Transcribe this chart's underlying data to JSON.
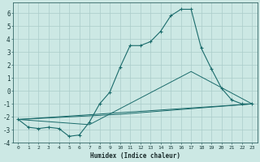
{
  "title": "",
  "xlabel": "Humidex (Indice chaleur)",
  "bg_color": "#cce8e4",
  "grid_color": "#aaccca",
  "line_color": "#1a6b6b",
  "xlim": [
    -0.5,
    23.5
  ],
  "ylim": [
    -4,
    6.8
  ],
  "xticks": [
    0,
    1,
    2,
    3,
    4,
    5,
    6,
    7,
    8,
    9,
    10,
    11,
    12,
    13,
    14,
    15,
    16,
    17,
    18,
    19,
    20,
    21,
    22,
    23
  ],
  "yticks": [
    -4,
    -3,
    -2,
    -1,
    0,
    1,
    2,
    3,
    4,
    5,
    6
  ],
  "series": [
    [
      0,
      -2.2
    ],
    [
      1,
      -2.8
    ],
    [
      2,
      -2.9
    ],
    [
      3,
      -2.8
    ],
    [
      4,
      -2.9
    ],
    [
      5,
      -3.5
    ],
    [
      6,
      -3.4
    ],
    [
      7,
      -2.4
    ],
    [
      8,
      -1.0
    ],
    [
      9,
      -0.1
    ],
    [
      10,
      1.8
    ],
    [
      11,
      3.5
    ],
    [
      12,
      3.5
    ],
    [
      13,
      3.8
    ],
    [
      14,
      4.6
    ],
    [
      15,
      5.8
    ],
    [
      16,
      6.3
    ],
    [
      17,
      6.3
    ],
    [
      18,
      3.3
    ],
    [
      19,
      1.7
    ],
    [
      20,
      0.2
    ],
    [
      21,
      -0.7
    ],
    [
      22,
      -1.0
    ],
    [
      23,
      -1.0
    ]
  ],
  "line2": [
    [
      0,
      -2.2
    ],
    [
      23,
      -1.0
    ]
  ],
  "line3": [
    [
      0,
      -2.2
    ],
    [
      10,
      -1.8
    ],
    [
      23,
      -1.0
    ]
  ],
  "line4": [
    [
      0,
      -2.2
    ],
    [
      7,
      -2.6
    ],
    [
      17,
      1.5
    ],
    [
      23,
      -1.0
    ]
  ]
}
